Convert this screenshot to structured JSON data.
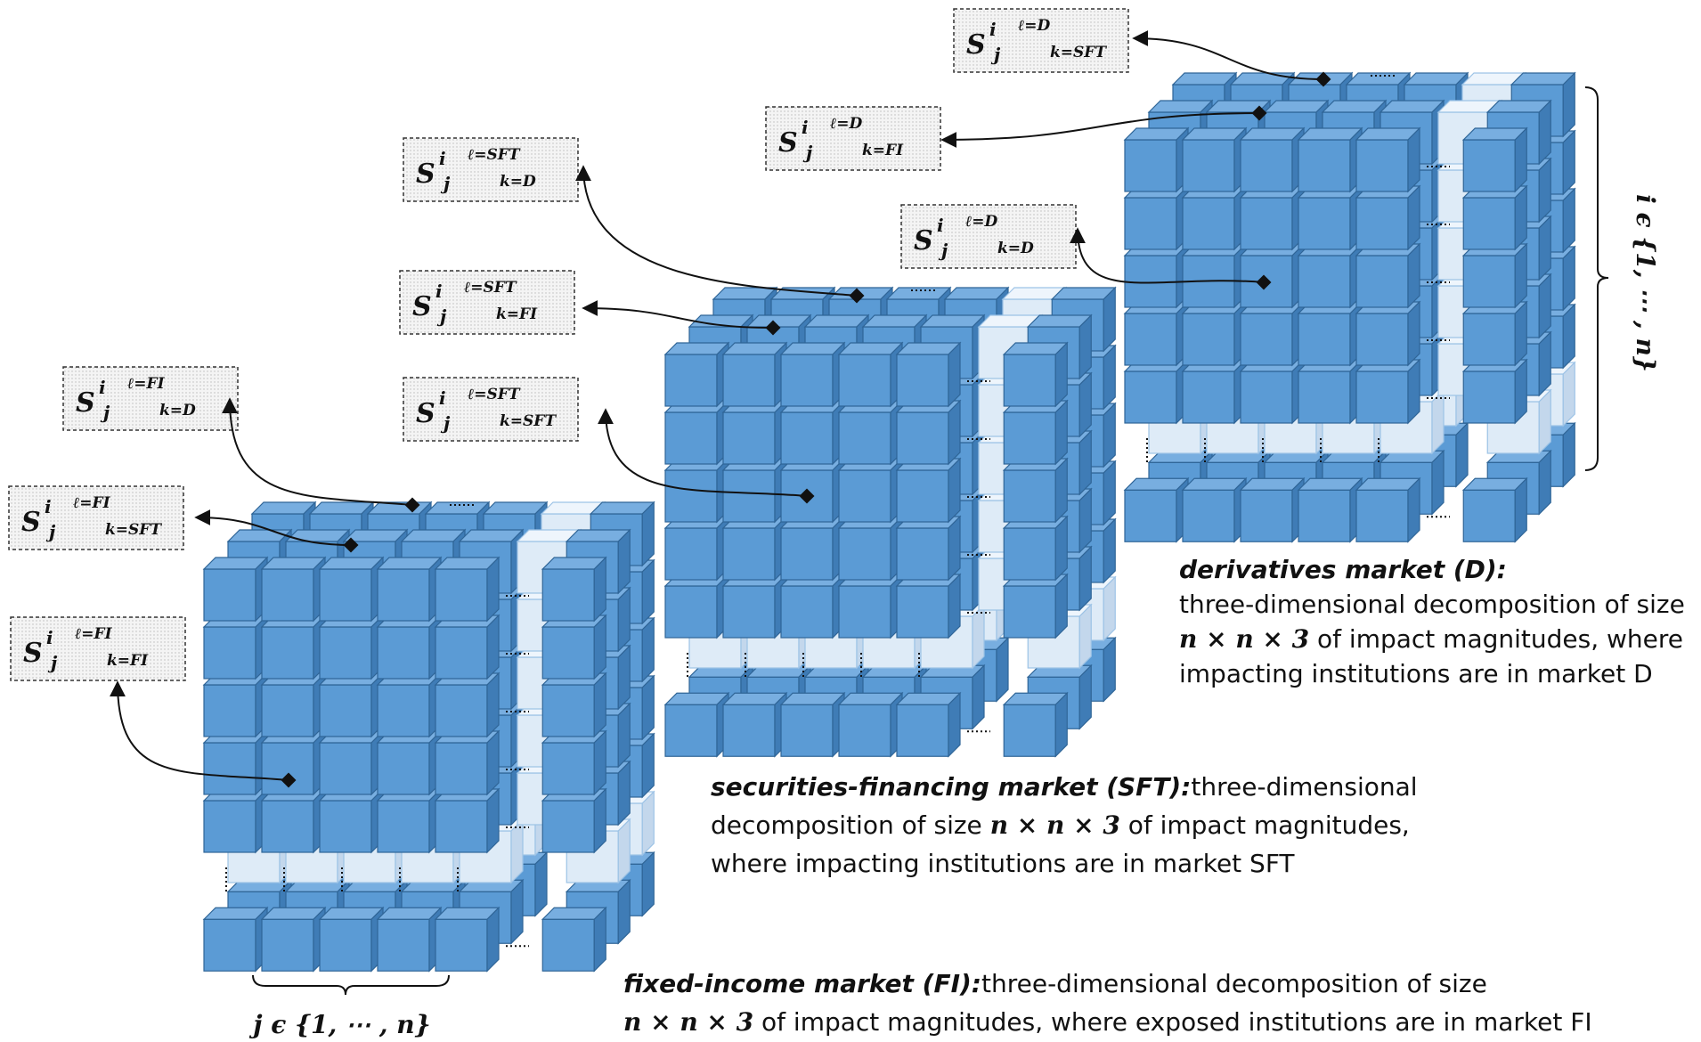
{
  "labels": [
    {
      "base": "S",
      "sup": "i",
      "sub": "j",
      "l": "ℓ=D",
      "k": "k=SFT"
    },
    {
      "base": "S",
      "sup": "i",
      "sub": "j",
      "l": "ℓ=D",
      "k": "k=FI"
    },
    {
      "base": "S",
      "sup": "i",
      "sub": "j",
      "l": "ℓ=SFT",
      "k": "k=D"
    },
    {
      "base": "S",
      "sup": "i",
      "sub": "j",
      "l": "ℓ=D",
      "k": "k=D"
    },
    {
      "base": "S",
      "sup": "i",
      "sub": "j",
      "l": "ℓ=SFT",
      "k": "k=FI"
    },
    {
      "base": "S",
      "sup": "i",
      "sub": "j",
      "l": "ℓ=SFT",
      "k": "k=SFT"
    },
    {
      "base": "S",
      "sup": "i",
      "sub": "j",
      "l": "ℓ=FI",
      "k": "k=D"
    },
    {
      "base": "S",
      "sup": "i",
      "sub": "j",
      "l": "ℓ=FI",
      "k": "k=SFT"
    },
    {
      "base": "S",
      "sup": "i",
      "sub": "j",
      "l": "ℓ=FI",
      "k": "k=FI"
    }
  ],
  "captions": [
    {
      "title": "derivatives market (D):",
      "lines": [
        [
          {
            "text": "three-dimensional decomposition of size"
          }
        ],
        [
          {
            "math": "n × n × 3"
          },
          {
            "text": " of impact magnitudes, where"
          }
        ],
        [
          {
            "text": "impacting institutions are in market D"
          }
        ]
      ]
    },
    {
      "title": "securities-financing market (SFT):",
      "lines": [
        [
          {
            "text": " three-dimensional"
          }
        ],
        [
          {
            "text": "decomposition of size "
          },
          {
            "math": "n × n × 3"
          },
          {
            "text": " of impact magnitudes,"
          }
        ],
        [
          {
            "text": "where impacting institutions are in market SFT"
          }
        ]
      ]
    },
    {
      "title": "fixed-income market (FI):",
      "lines": [
        [
          {
            "text": " three-dimensional decomposition of size"
          }
        ],
        [
          {
            "math": "n × n × 3"
          },
          {
            "text": " of impact magnitudes, where exposed institutions are in market FI"
          }
        ]
      ]
    }
  ],
  "axes": {
    "i": "i ϵ {1, ⋯ , n}",
    "j": "j ϵ {1, ⋯ , n}"
  }
}
